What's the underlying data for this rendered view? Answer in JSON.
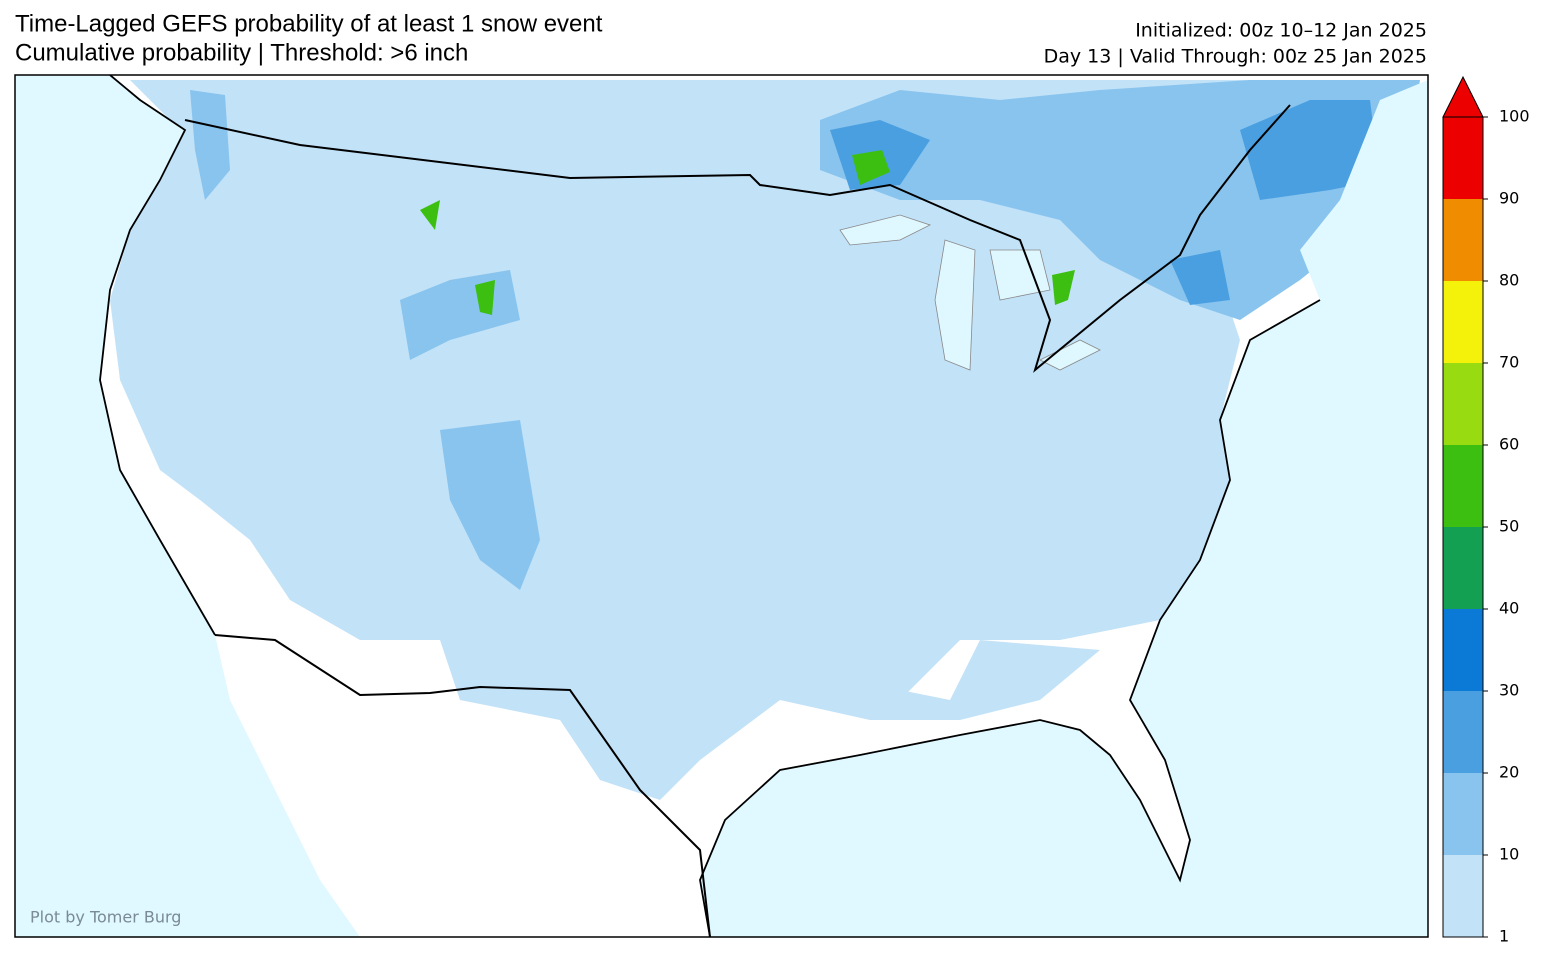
{
  "header": {
    "title": "Time-Lagged GEFS probability of at least 1 snow event",
    "subtitle": "Cumulative probability | Threshold: >6 inch",
    "initialized": "Initialized: 00z 10–12 Jan 2025",
    "valid": "Day 13 | Valid Through: 00z 25 Jan 2025"
  },
  "colorbar": {
    "ticks": [
      1,
      10,
      20,
      30,
      40,
      50,
      60,
      70,
      80,
      90,
      100
    ],
    "colors": [
      "#c2e2f8",
      "#88c4ee",
      "#4a9fe0",
      "#0b7ad6",
      "#13a052",
      "#3cbf10",
      "#98db10",
      "#f4f20a",
      "#f08c00",
      "#ec0000"
    ]
  },
  "credit": "Plot by Tomer Burg"
}
